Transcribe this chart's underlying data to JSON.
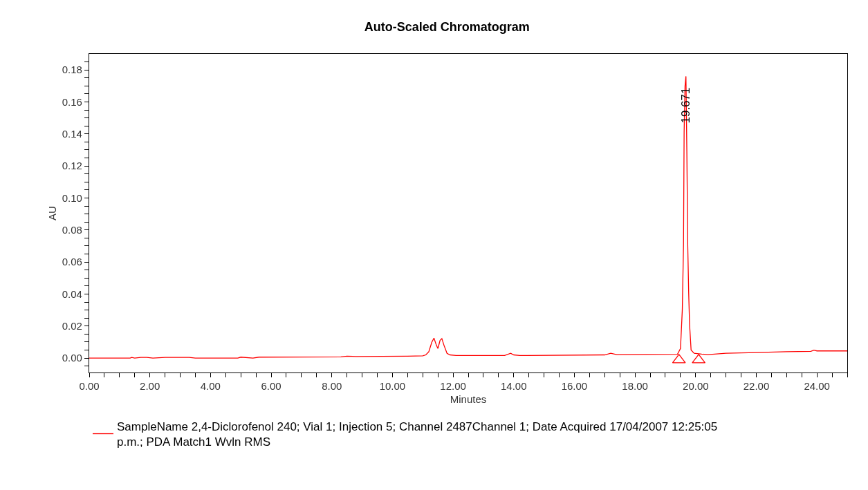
{
  "chart_data": {
    "type": "line",
    "title": "Auto-Scaled Chromatogram",
    "xlabel": "Minutes",
    "ylabel": "AU",
    "xlim": [
      0,
      25
    ],
    "ylim": [
      -0.009,
      0.19
    ],
    "xticks": [
      {
        "value": 0,
        "label": "0.00"
      },
      {
        "value": 0.5,
        "label": null
      },
      {
        "value": 1,
        "label": null
      },
      {
        "value": 1.5,
        "label": null
      },
      {
        "value": 2,
        "label": "2.00"
      },
      {
        "value": 2.5,
        "label": null
      },
      {
        "value": 3,
        "label": null
      },
      {
        "value": 3.5,
        "label": null
      },
      {
        "value": 4,
        "label": "4.00"
      },
      {
        "value": 4.5,
        "label": null
      },
      {
        "value": 5,
        "label": null
      },
      {
        "value": 5.5,
        "label": null
      },
      {
        "value": 6,
        "label": "6.00"
      },
      {
        "value": 6.5,
        "label": null
      },
      {
        "value": 7,
        "label": null
      },
      {
        "value": 7.5,
        "label": null
      },
      {
        "value": 8,
        "label": "8.00"
      },
      {
        "value": 8.5,
        "label": null
      },
      {
        "value": 9,
        "label": null
      },
      {
        "value": 9.5,
        "label": null
      },
      {
        "value": 10,
        "label": "10.00"
      },
      {
        "value": 10.5,
        "label": null
      },
      {
        "value": 11,
        "label": null
      },
      {
        "value": 11.5,
        "label": null
      },
      {
        "value": 12,
        "label": "12.00"
      },
      {
        "value": 12.5,
        "label": null
      },
      {
        "value": 13,
        "label": null
      },
      {
        "value": 13.5,
        "label": null
      },
      {
        "value": 14,
        "label": "14.00"
      },
      {
        "value": 14.5,
        "label": null
      },
      {
        "value": 15,
        "label": null
      },
      {
        "value": 15.5,
        "label": null
      },
      {
        "value": 16,
        "label": "16.00"
      },
      {
        "value": 16.5,
        "label": null
      },
      {
        "value": 17,
        "label": null
      },
      {
        "value": 17.5,
        "label": null
      },
      {
        "value": 18,
        "label": "18.00"
      },
      {
        "value": 18.5,
        "label": null
      },
      {
        "value": 19,
        "label": null
      },
      {
        "value": 19.5,
        "label": null
      },
      {
        "value": 20,
        "label": "20.00"
      },
      {
        "value": 20.5,
        "label": null
      },
      {
        "value": 21,
        "label": null
      },
      {
        "value": 21.5,
        "label": null
      },
      {
        "value": 22,
        "label": "22.00"
      },
      {
        "value": 22.5,
        "label": null
      },
      {
        "value": 23,
        "label": null
      },
      {
        "value": 23.5,
        "label": null
      },
      {
        "value": 24,
        "label": "24.00"
      },
      {
        "value": 24.5,
        "label": null
      },
      {
        "value": 25,
        "label": null
      }
    ],
    "yticks": [
      {
        "value": -0.005,
        "label": null
      },
      {
        "value": 0,
        "label": "0.00"
      },
      {
        "value": 0.005,
        "label": null
      },
      {
        "value": 0.01,
        "label": null
      },
      {
        "value": 0.015,
        "label": null
      },
      {
        "value": 0.02,
        "label": "0.02"
      },
      {
        "value": 0.025,
        "label": null
      },
      {
        "value": 0.03,
        "label": null
      },
      {
        "value": 0.035,
        "label": null
      },
      {
        "value": 0.04,
        "label": "0.04"
      },
      {
        "value": 0.045,
        "label": null
      },
      {
        "value": 0.05,
        "label": null
      },
      {
        "value": 0.055,
        "label": null
      },
      {
        "value": 0.06,
        "label": "0.06"
      },
      {
        "value": 0.065,
        "label": null
      },
      {
        "value": 0.07,
        "label": null
      },
      {
        "value": 0.075,
        "label": null
      },
      {
        "value": 0.08,
        "label": "0.08"
      },
      {
        "value": 0.085,
        "label": null
      },
      {
        "value": 0.09,
        "label": null
      },
      {
        "value": 0.095,
        "label": null
      },
      {
        "value": 0.1,
        "label": "0.10"
      },
      {
        "value": 0.105,
        "label": null
      },
      {
        "value": 0.11,
        "label": null
      },
      {
        "value": 0.115,
        "label": null
      },
      {
        "value": 0.12,
        "label": "0.12"
      },
      {
        "value": 0.125,
        "label": null
      },
      {
        "value": 0.13,
        "label": null
      },
      {
        "value": 0.135,
        "label": null
      },
      {
        "value": 0.14,
        "label": "0.14"
      },
      {
        "value": 0.145,
        "label": null
      },
      {
        "value": 0.15,
        "label": null
      },
      {
        "value": 0.155,
        "label": null
      },
      {
        "value": 0.16,
        "label": "0.16"
      },
      {
        "value": 0.165,
        "label": null
      },
      {
        "value": 0.17,
        "label": null
      },
      {
        "value": 0.175,
        "label": null
      },
      {
        "value": 0.18,
        "label": "0.18"
      },
      {
        "value": 0.185,
        "label": null
      }
    ],
    "legend": "bottom",
    "marker": "none",
    "line_style": "solid",
    "annotations": [
      {
        "text": "19.671",
        "x": 19.671,
        "y": 0.158
      }
    ],
    "series": [
      {
        "name": "SampleName 2,4-Diclorofenol 240; Vial 1; Injection 5; Channel 2487Channel 1; Date Acquired 17/04/2007 12:25:05 p.m.; PDA Match1 Wvln RMS",
        "color": "#ff0000",
        "x": [
          0,
          1.35,
          1.4,
          1.5,
          1.7,
          1.9,
          2.1,
          2.5,
          2.9,
          3.3,
          3.5,
          4.9,
          5.0,
          5.4,
          5.6,
          8.3,
          8.5,
          8.8,
          10.5,
          11.0,
          11.1,
          11.2,
          11.3,
          11.37,
          11.45,
          11.5,
          11.57,
          11.63,
          11.7,
          11.8,
          11.9,
          12.1,
          13.7,
          13.9,
          14.0,
          14.2,
          17.0,
          17.2,
          17.4,
          19.4,
          19.5,
          19.56,
          19.6,
          19.62,
          19.65,
          19.68,
          19.71,
          19.74,
          19.77,
          19.8,
          19.85,
          19.95,
          20.2,
          20.4,
          21.0,
          22.0,
          23.0,
          23.8,
          23.9,
          24.0,
          25
        ],
        "values": [
          0,
          0,
          0.0004,
          0,
          0.0004,
          0.0004,
          0,
          0.0004,
          0.0004,
          0.0004,
          0,
          0,
          0.0006,
          0,
          0.0006,
          0.0008,
          0.0012,
          0.001,
          0.0012,
          0.0014,
          0.002,
          0.004,
          0.01,
          0.0125,
          0.008,
          0.006,
          0.011,
          0.0122,
          0.008,
          0.003,
          0.002,
          0.0016,
          0.0016,
          0.003,
          0.002,
          0.0016,
          0.002,
          0.003,
          0.0022,
          0.0024,
          0.006,
          0.03,
          0.071,
          0.141,
          0.17,
          0.176,
          0.129,
          0.07,
          0.041,
          0.021,
          0.005,
          0.003,
          0.0025,
          0.0022,
          0.003,
          0.0035,
          0.004,
          0.0042,
          0.005,
          0.0045,
          0.0045
        ]
      },
      {
        "type": "scatter",
        "color": "#ff0000",
        "marker": "triangle",
        "x": [
          19.45,
          20.1
        ],
        "values": [
          -0.0012,
          -0.0012
        ]
      }
    ]
  }
}
